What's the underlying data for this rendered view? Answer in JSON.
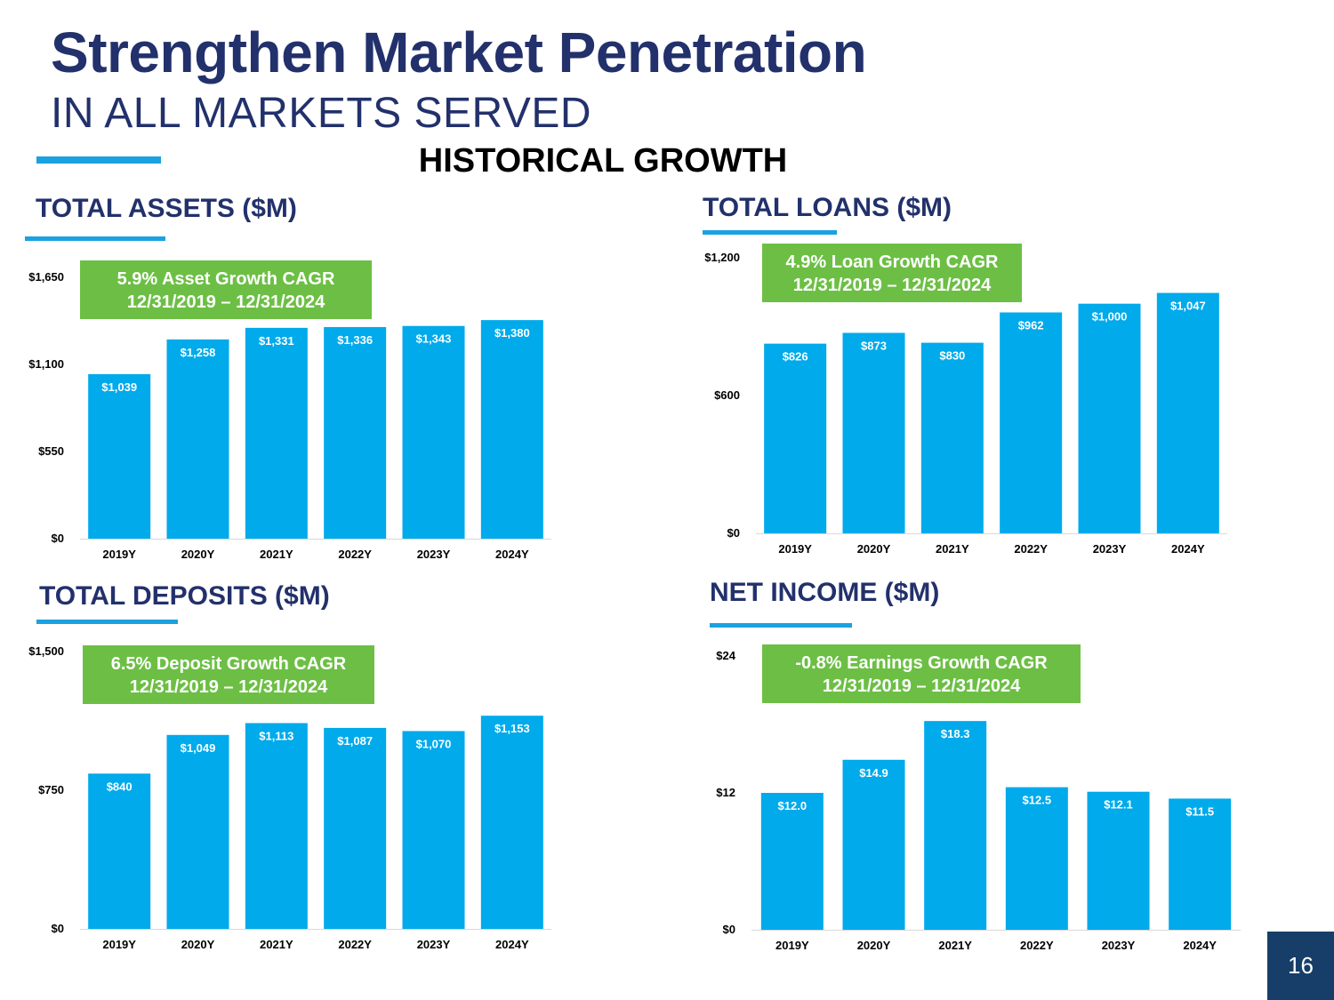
{
  "header": {
    "title": "Strengthen Market Penetration",
    "subtitle": "IN ALL MARKETS SERVED",
    "section": "HISTORICAL GROWTH"
  },
  "colors": {
    "bar": "#00aaeb",
    "navy": "#22316b",
    "accent_line": "#1aa1e0",
    "cagr_box": "#6cbf44",
    "page_badge": "#163e69"
  },
  "page_number": "16",
  "chart_data": [
    {
      "id": "assets",
      "type": "bar",
      "title": "TOTAL ASSETS ($M)",
      "cagr_line1": "5.9% Asset Growth CAGR",
      "cagr_line2": "12/31/2019 – 12/31/2024",
      "categories": [
        "2019Y",
        "2020Y",
        "2021Y",
        "2022Y",
        "2023Y",
        "2024Y"
      ],
      "values": [
        1039,
        1258,
        1331,
        1336,
        1343,
        1380
      ],
      "value_labels": [
        "$1,039",
        "$1,258",
        "$1,331",
        "$1,336",
        "$1,343",
        "$1,380"
      ],
      "ylim": [
        0,
        1650
      ],
      "yticks": [
        0,
        550,
        1100,
        1650
      ],
      "ytick_labels": [
        "$0",
        "$550",
        "$1,100",
        "$1,650"
      ],
      "grid": false
    },
    {
      "id": "loans",
      "type": "bar",
      "title": "TOTAL LOANS ($M)",
      "cagr_line1": "4.9% Loan Growth CAGR",
      "cagr_line2": "12/31/2019 – 12/31/2024",
      "categories": [
        "2019Y",
        "2020Y",
        "2021Y",
        "2022Y",
        "2023Y",
        "2024Y"
      ],
      "values": [
        826,
        873,
        830,
        962,
        1000,
        1047
      ],
      "value_labels": [
        "$826",
        "$873",
        "$830",
        "$962",
        "$1,000",
        "$1,047"
      ],
      "ylim": [
        0,
        1200
      ],
      "yticks": [
        0,
        600,
        1200
      ],
      "ytick_labels": [
        "$0",
        "$600",
        "$1,200"
      ],
      "grid": false
    },
    {
      "id": "deposits",
      "type": "bar",
      "title": "TOTAL DEPOSITS ($M)",
      "cagr_line1": "6.5% Deposit Growth CAGR",
      "cagr_line2": "12/31/2019 – 12/31/2024",
      "categories": [
        "2019Y",
        "2020Y",
        "2021Y",
        "2022Y",
        "2023Y",
        "2024Y"
      ],
      "values": [
        840,
        1049,
        1113,
        1087,
        1070,
        1153
      ],
      "value_labels": [
        "$840",
        "$1,049",
        "$1,113",
        "$1,087",
        "$1,070",
        "$1,153"
      ],
      "ylim": [
        0,
        1500
      ],
      "yticks": [
        0,
        750,
        1500
      ],
      "ytick_labels": [
        "$0",
        "$750",
        "$1,500"
      ],
      "grid": false
    },
    {
      "id": "income",
      "type": "bar",
      "title": "NET INCOME ($M)",
      "cagr_line1": "-0.8% Earnings Growth CAGR",
      "cagr_line2": "12/31/2019 – 12/31/2024",
      "categories": [
        "2019Y",
        "2020Y",
        "2021Y",
        "2022Y",
        "2023Y",
        "2024Y"
      ],
      "values": [
        12.0,
        14.9,
        18.3,
        12.5,
        12.1,
        11.5
      ],
      "value_labels": [
        "$12.0",
        "$14.9",
        "$18.3",
        "$12.5",
        "$12.1",
        "$11.5"
      ],
      "ylim": [
        0,
        24
      ],
      "yticks": [
        0,
        12,
        24
      ],
      "ytick_labels": [
        "$0",
        "$12",
        "$24"
      ],
      "grid": false
    }
  ]
}
